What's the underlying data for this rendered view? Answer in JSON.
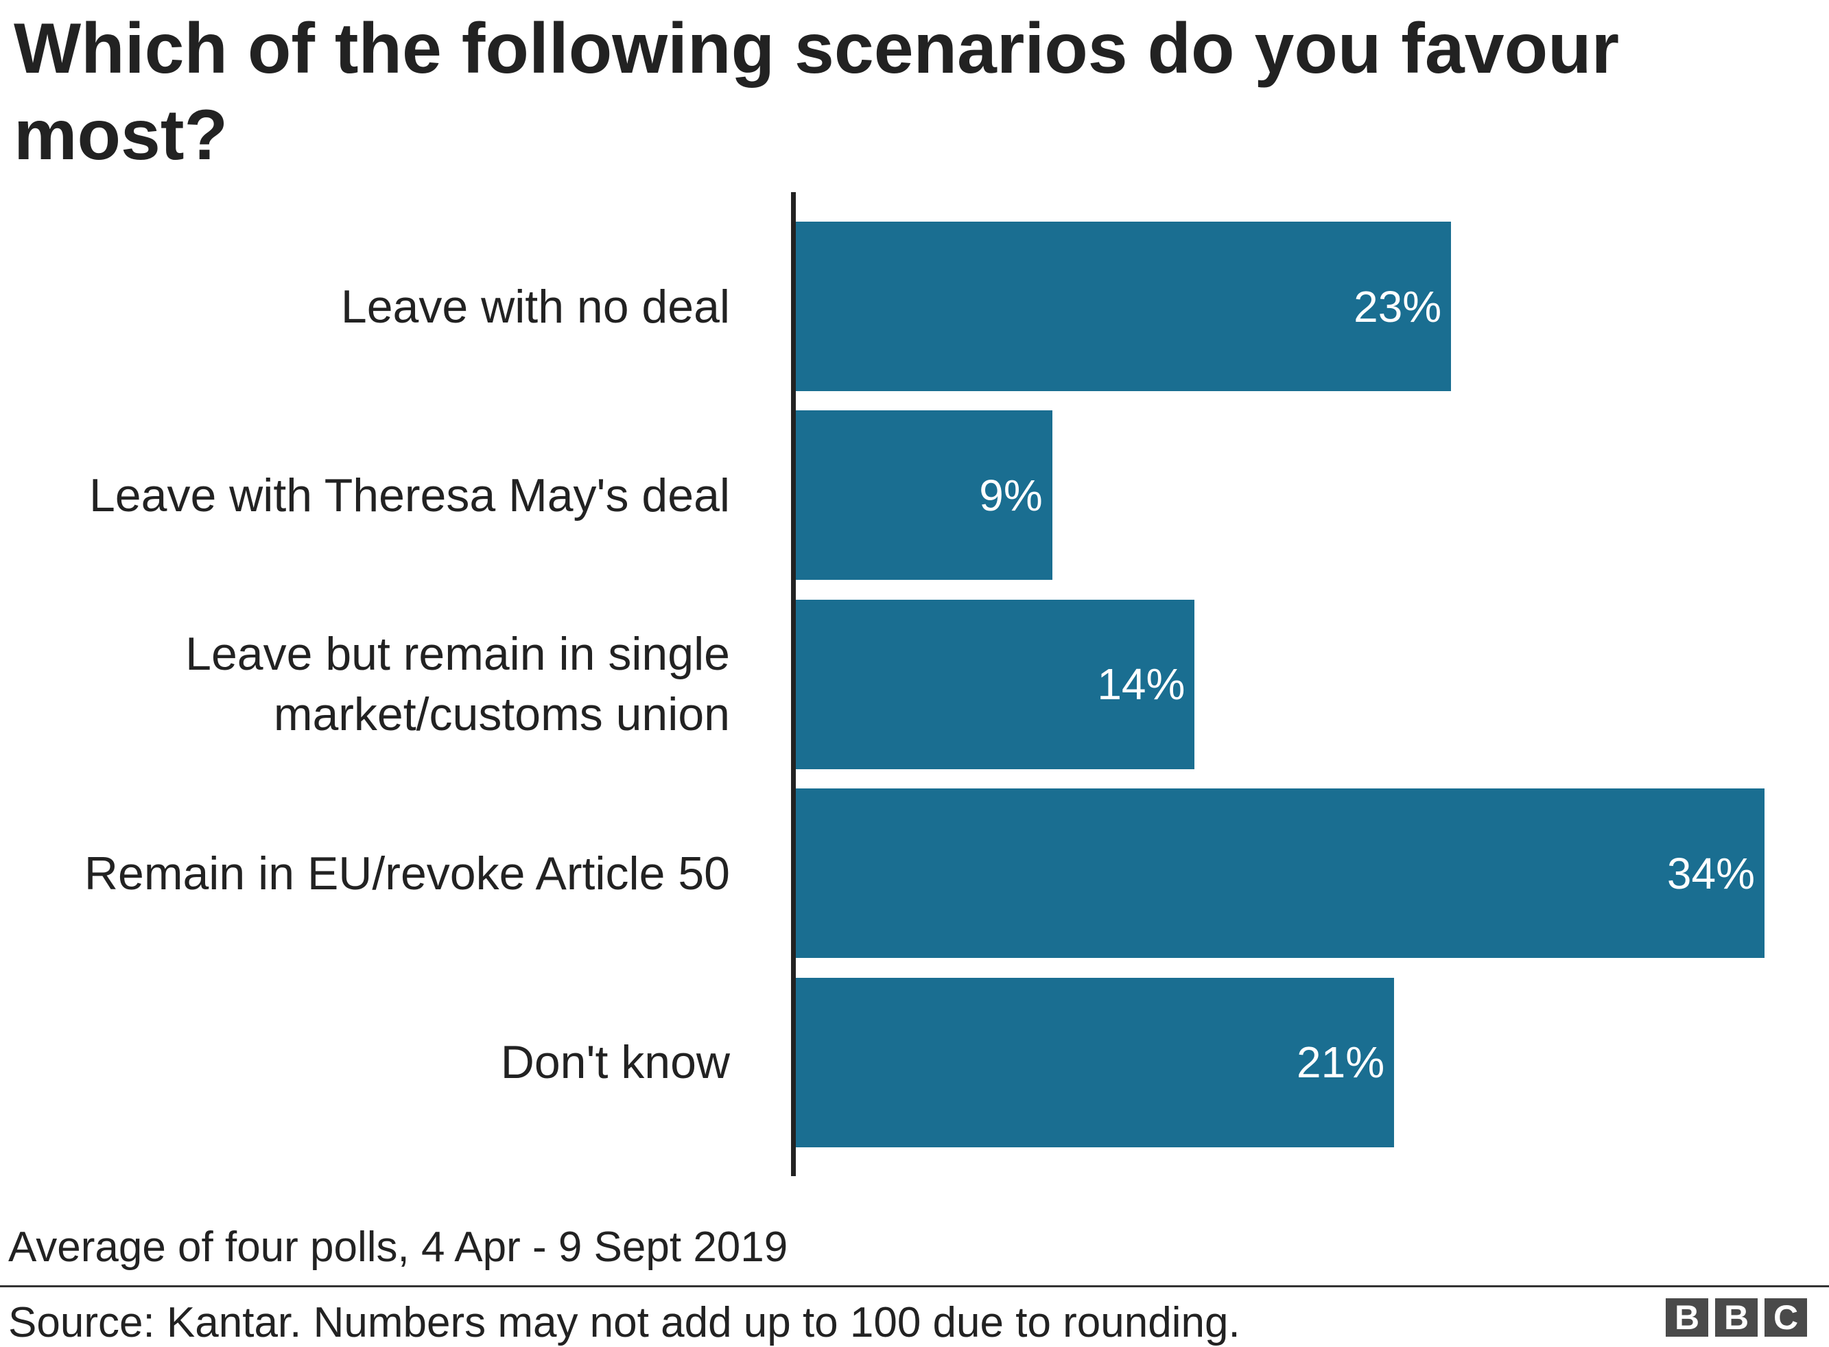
{
  "chart_data": {
    "type": "bar",
    "orientation": "horizontal",
    "title": "Which of the following scenarios do you favour most?",
    "categories": [
      "Leave with no deal",
      "Leave with Theresa May's deal",
      "Leave but remain in single\nmarket/customs union",
      "Remain in EU/revoke Article 50",
      "Don't know"
    ],
    "values": [
      23,
      9,
      14,
      34,
      21
    ],
    "value_labels": [
      "23%",
      "9%",
      "14%",
      "34%",
      "21%"
    ],
    "color": "#1a6e91",
    "xlim": [
      0,
      34
    ],
    "note": "Average of four polls, 4 Apr - 9 Sept 2019",
    "source": "Source: Kantar. Numbers may not add up to 100 due to rounding.",
    "logo": [
      "B",
      "B",
      "C"
    ]
  }
}
